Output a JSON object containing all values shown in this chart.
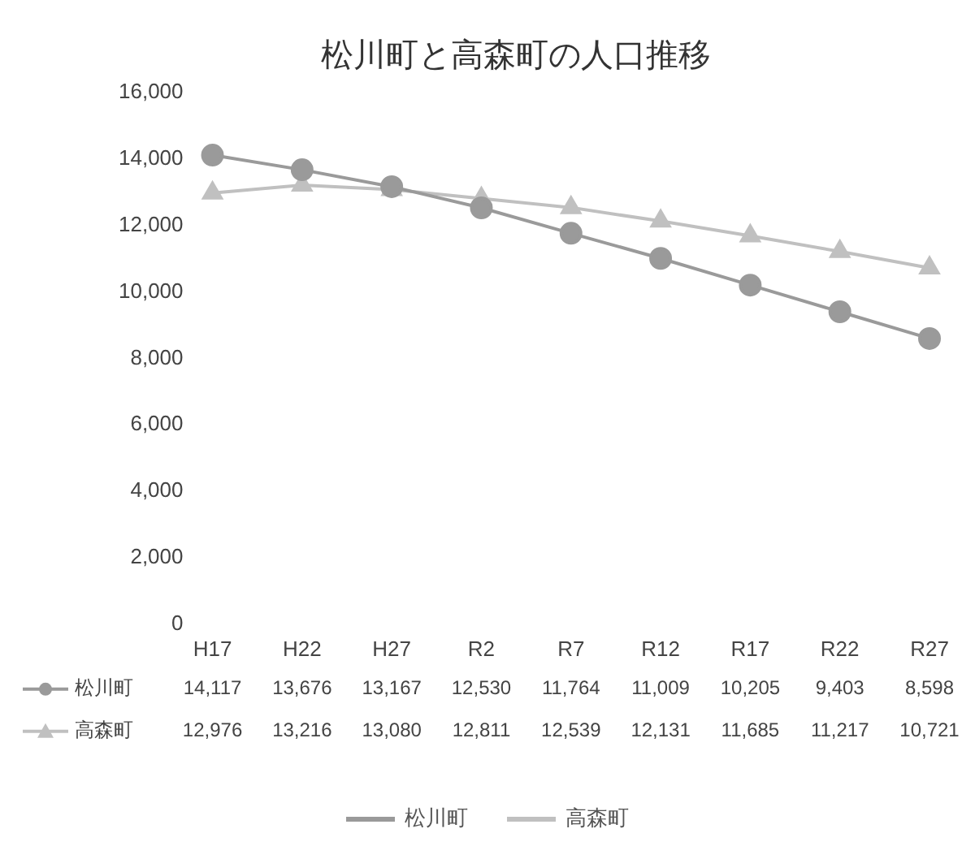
{
  "chart_data": {
    "type": "line",
    "title": "松川町と高森町の人口推移",
    "categories": [
      "H17",
      "H22",
      "H27",
      "R2",
      "R7",
      "R12",
      "R17",
      "R22",
      "R27"
    ],
    "series": [
      {
        "name": "松川町",
        "color": "#9a9a9a",
        "marker": "circle",
        "values": [
          14117,
          13676,
          13167,
          12530,
          11764,
          11009,
          10205,
          9403,
          8598
        ],
        "value_labels": [
          "14,117",
          "13,676",
          "13,167",
          "12,530",
          "11,764",
          "11,009",
          "10,205",
          "9,403",
          "8,598"
        ]
      },
      {
        "name": "高森町",
        "color": "#c0c0c0",
        "marker": "triangle",
        "values": [
          12976,
          13216,
          13080,
          12811,
          12539,
          12131,
          11685,
          11217,
          10721
        ],
        "value_labels": [
          "12,976",
          "13,216",
          "13,080",
          "12,811",
          "12,539",
          "12,131",
          "11,685",
          "11,217",
          "10,721"
        ]
      }
    ],
    "ylim": [
      0,
      16000
    ],
    "yticks": [
      0,
      {
        "value": 2000,
        "label": "2,000"
      },
      {
        "value": 4000,
        "label": "4,000"
      },
      {
        "value": 6000,
        "label": "6,000"
      },
      {
        "value": 8000,
        "label": "8,000"
      },
      {
        "value": 10000,
        "label": "10,000"
      },
      {
        "value": 12000,
        "label": "12,000"
      },
      {
        "value": 14000,
        "label": "14,000"
      },
      {
        "value": 16000,
        "label": "16,000"
      }
    ],
    "grid": false,
    "legend": "bottom"
  }
}
